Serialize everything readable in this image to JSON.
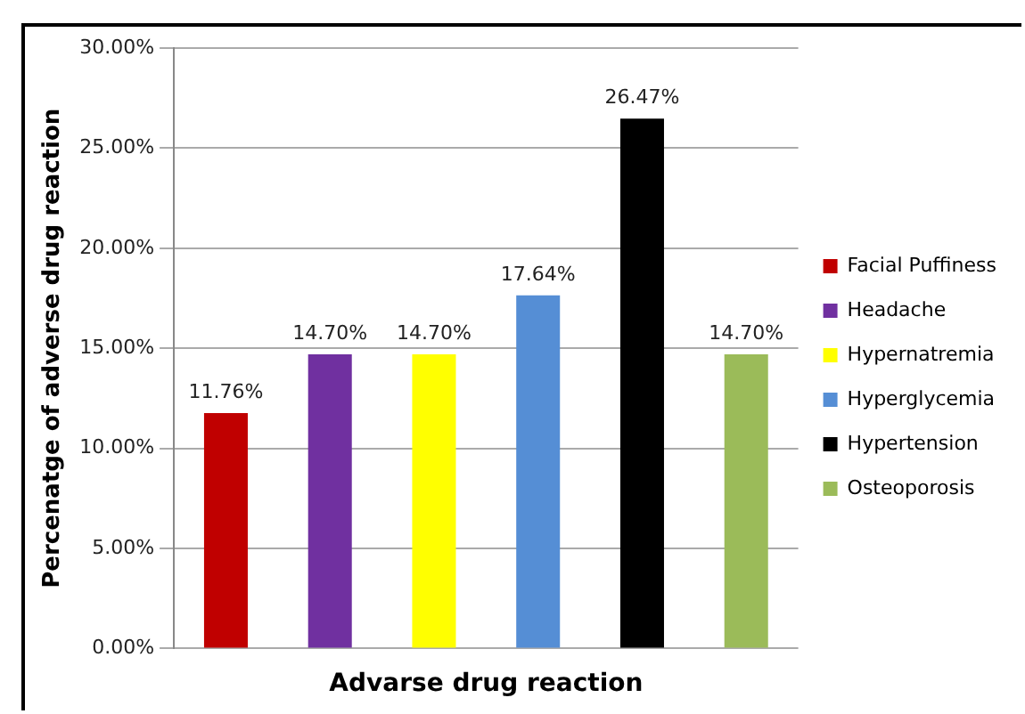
{
  "chart_data": {
    "type": "bar",
    "xlabel": "Advarse drug reaction",
    "ylabel": "Percenatge of adverse drug reaction",
    "categories": [
      null
    ],
    "series": [
      {
        "name": "Facial Puffiness",
        "color": "#c00000",
        "values": [
          11.76
        ],
        "value_labels": [
          "11.76%"
        ]
      },
      {
        "name": "Headache",
        "color": "#7030a0",
        "values": [
          14.7
        ],
        "value_labels": [
          "14.70%"
        ]
      },
      {
        "name": "Hypernatremia",
        "color": "#ffff00",
        "values": [
          14.7
        ],
        "value_labels": [
          "14.70%"
        ]
      },
      {
        "name": "Hyperglycemia",
        "color": "#558ed5",
        "values": [
          17.64
        ],
        "value_labels": [
          "17.64%"
        ]
      },
      {
        "name": "Hypertension",
        "color": "#000000",
        "values": [
          26.47
        ],
        "value_labels": [
          "26.47%"
        ]
      },
      {
        "name": "Osteoporosis",
        "color": "#9bbb59",
        "values": [
          14.7
        ],
        "value_labels": [
          "14.70%"
        ]
      }
    ],
    "ylim": [
      0,
      30
    ],
    "yticks": [
      {
        "value": 0,
        "label": "0.00%"
      },
      {
        "value": 5,
        "label": "5.00%"
      },
      {
        "value": 10,
        "label": "10.00%"
      },
      {
        "value": 15,
        "label": "15.00%"
      },
      {
        "value": 20,
        "label": "20.00%"
      },
      {
        "value": 25,
        "label": "25.00%"
      },
      {
        "value": 30,
        "label": "30.00%"
      }
    ],
    "grid": "y",
    "legend": "right"
  }
}
